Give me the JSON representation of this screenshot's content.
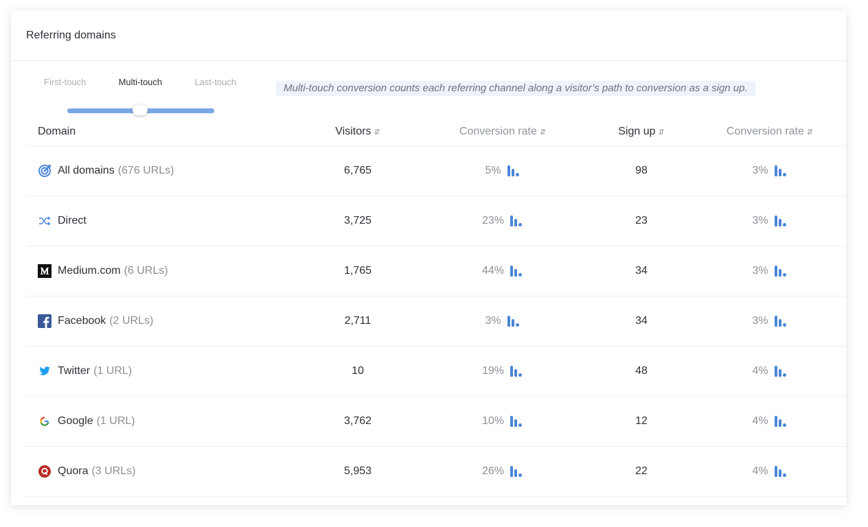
{
  "card": {
    "title": "Referring domains"
  },
  "attribution": {
    "options": [
      "First-touch",
      "Multi-touch",
      "Last-touch"
    ],
    "selected": "Multi-touch",
    "note": "Multi-touch conversion counts each referring channel along a visitor’s path to conversion as a sign up."
  },
  "table": {
    "headers": {
      "domain": "Domain",
      "visitors": "Visitors",
      "conversion_rate_1": "Conversion rate",
      "sign_up": "Sign up",
      "conversion_rate_2": "Conversion rate"
    },
    "rows": [
      {
        "icon": "target-icon",
        "name": "All domains",
        "urls": "(676 URLs)",
        "visitors": "6,765",
        "rate1": "5%",
        "signups": "98",
        "rate2": "3%"
      },
      {
        "icon": "shuffle-icon",
        "name": "Direct",
        "urls": "",
        "visitors": "3,725",
        "rate1": "23%",
        "signups": "23",
        "rate2": "3%"
      },
      {
        "icon": "medium-logo-icon",
        "name": "Medium.com",
        "urls": "(6 URLs)",
        "visitors": "1,765",
        "rate1": "44%",
        "signups": "34",
        "rate2": "3%"
      },
      {
        "icon": "facebook-logo-icon",
        "name": "Facebook",
        "urls": "(2 URLs)",
        "visitors": "2,711",
        "rate1": "3%",
        "signups": "34",
        "rate2": "3%"
      },
      {
        "icon": "twitter-logo-icon",
        "name": "Twitter",
        "urls": "(1 URL)",
        "visitors": "10",
        "rate1": "19%",
        "signups": "48",
        "rate2": "4%"
      },
      {
        "icon": "google-logo-icon",
        "name": "Google",
        "urls": "(1 URL)",
        "visitors": "3,762",
        "rate1": "10%",
        "signups": "12",
        "rate2": "4%"
      },
      {
        "icon": "quora-logo-icon",
        "name": "Quora",
        "urls": "(3 URLs)",
        "visitors": "5,953",
        "rate1": "26%",
        "signups": "22",
        "rate2": "4%"
      }
    ]
  },
  "colors": {
    "accent": "#4a86d8",
    "slider": "#7aa6e6",
    "facebook": "#3b5998",
    "twitter": "#1da1f2",
    "quora": "#b92b27"
  }
}
